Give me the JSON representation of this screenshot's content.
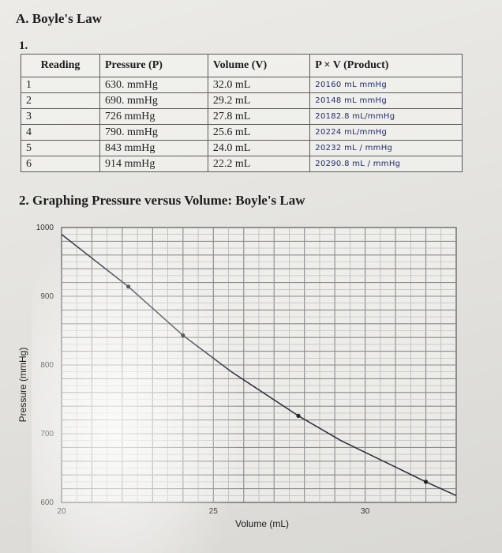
{
  "section_a_title": "A. Boyle's Law",
  "item_1_label": "1.",
  "table": {
    "headers": [
      "Reading",
      "Pressure (P)",
      "Volume (V)",
      "P × V (Product)"
    ],
    "rows": [
      [
        "1",
        "630. mmHg",
        "32.0 mL",
        "20160 mL mmHg"
      ],
      [
        "2",
        "690. mmHg",
        "29.2 mL",
        "20148 mL mmHg"
      ],
      [
        "3",
        "726 mmHg",
        "27.8 mL",
        "20182.8 mL/mmHg"
      ],
      [
        "4",
        "790. mmHg",
        "25.6 mL",
        "20224 mL/mmHg"
      ],
      [
        "5",
        "843 mmHg",
        "24.0 mL",
        "20232 mL / mmHg"
      ],
      [
        "6",
        "914 mmHg",
        "22.2 mL",
        "20290.8 mL / mmHg"
      ]
    ]
  },
  "section_2_title": "2. Graphing Pressure versus Volume: Boyle's Law",
  "chart_data": {
    "type": "line",
    "title": "",
    "xlabel": "Volume (mL)",
    "ylabel": "Pressure (mmHg)",
    "xlim": [
      20,
      33
    ],
    "ylim": [
      600,
      1000
    ],
    "x_ticks": [
      20,
      25,
      30
    ],
    "y_ticks": [
      600,
      700,
      800,
      900,
      1000
    ],
    "grid": true,
    "series": [
      {
        "x": [
          20.0,
          22.2,
          24.0,
          25.6,
          27.8,
          29.2,
          32.0,
          33.0
        ],
        "y": [
          990,
          914,
          843,
          790,
          726,
          690,
          630,
          610
        ]
      }
    ],
    "markers": [
      {
        "x": 22.2,
        "y": 914
      },
      {
        "x": 24.0,
        "y": 843
      },
      {
        "x": 27.8,
        "y": 726
      },
      {
        "x": 32.0,
        "y": 630
      }
    ]
  }
}
